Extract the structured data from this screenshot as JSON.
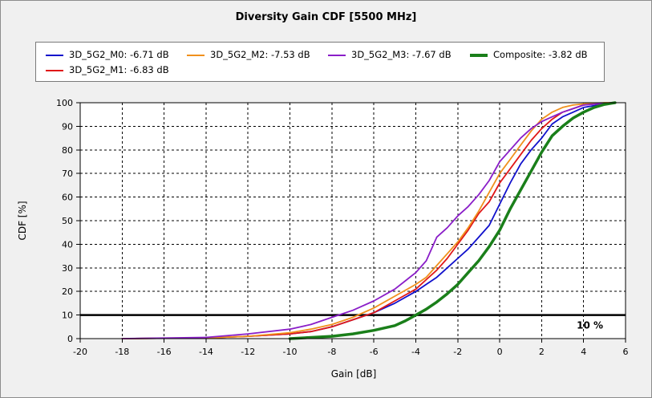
{
  "chart_data": {
    "type": "line",
    "title": "Diversity Gain CDF [5500 MHz]",
    "xlabel": "Gain [dB]",
    "ylabel": "CDF [%]",
    "xlim": [
      -20,
      6
    ],
    "ylim": [
      0,
      100
    ],
    "xticks": [
      -20,
      -18,
      -16,
      -14,
      -12,
      -10,
      -8,
      -6,
      -4,
      -2,
      0,
      2,
      4,
      6
    ],
    "yticks": [
      0,
      10,
      20,
      30,
      40,
      50,
      60,
      70,
      80,
      90,
      100
    ],
    "grid": true,
    "reference_line": {
      "y": 10,
      "label": "10 %"
    },
    "series": [
      {
        "name": "3D_5G2_M0: -6.71 dB",
        "color": "#1010cc",
        "width": 1.8,
        "x": [
          -18,
          -14,
          -12,
          -10,
          -9,
          -8,
          -7,
          -6,
          -5,
          -4,
          -3.5,
          -3,
          -2.5,
          -2,
          -1.5,
          -1,
          -0.5,
          0,
          0.5,
          1,
          1.5,
          2,
          2.5,
          3,
          3.5,
          4,
          5,
          5.5
        ],
        "y": [
          0,
          0.3,
          1,
          2,
          3,
          5,
          8,
          11,
          15,
          20,
          23,
          26,
          30,
          34,
          38,
          43,
          48,
          57,
          66,
          74,
          80,
          85,
          91,
          94,
          96,
          98,
          99.5,
          100
        ]
      },
      {
        "name": "3D_5G2_M1: -6.83 dB",
        "color": "#e01818",
        "width": 1.8,
        "x": [
          -18,
          -14,
          -12,
          -10,
          -9,
          -8,
          -7,
          -6,
          -5,
          -4,
          -3.5,
          -3,
          -2.5,
          -2,
          -1.5,
          -1,
          -0.5,
          0,
          0.5,
          1,
          1.5,
          2,
          2.5,
          3,
          3.5,
          4,
          5,
          5.5
        ],
        "y": [
          0,
          0.3,
          1,
          2,
          3,
          5,
          8,
          11,
          16,
          21,
          25,
          29,
          34,
          40,
          46,
          53,
          58,
          66,
          72,
          78,
          84,
          89,
          93,
          96,
          97.5,
          99,
          99.8,
          100
        ]
      },
      {
        "name": "3D_5G2_M2: -7.53 dB",
        "color": "#f0901c",
        "width": 1.8,
        "x": [
          -18,
          -14,
          -12,
          -10,
          -9,
          -8,
          -7,
          -6,
          -5,
          -4,
          -3.5,
          -3,
          -2.5,
          -2,
          -1.5,
          -1,
          -0.5,
          0,
          0.5,
          1,
          1.5,
          2,
          2.5,
          3,
          3.5,
          4,
          5,
          5.5
        ],
        "y": [
          0,
          0.3,
          1,
          2.5,
          4,
          6,
          9,
          13,
          18,
          23,
          26,
          31,
          36,
          41,
          47,
          54,
          62,
          70,
          76,
          82,
          88,
          93,
          96,
          98,
          99,
          99.5,
          100,
          100
        ]
      },
      {
        "name": "3D_5G2_M3: -7.67 dB",
        "color": "#8a1ec8",
        "width": 1.8,
        "x": [
          -18,
          -14,
          -12,
          -10,
          -9,
          -8,
          -7,
          -6,
          -5,
          -4,
          -3.5,
          -3,
          -2.5,
          -2,
          -1.5,
          -1,
          -0.5,
          0,
          0.5,
          1,
          1.5,
          2,
          2.5,
          3,
          3.5,
          4,
          5,
          5.5
        ],
        "y": [
          0,
          0.5,
          2,
          4,
          6,
          9,
          12,
          16,
          21,
          28,
          33,
          43,
          47,
          52,
          56,
          61,
          67,
          75,
          80,
          85,
          89,
          92,
          94,
          96,
          97.5,
          99,
          99.8,
          100
        ]
      },
      {
        "name": "Composite: -3.82 dB",
        "color": "#1a7f1a",
        "width": 3.5,
        "x": [
          -10,
          -8,
          -7,
          -6,
          -5,
          -4.5,
          -4,
          -3.5,
          -3,
          -2.5,
          -2,
          -1.5,
          -1,
          -0.5,
          0,
          0.5,
          1,
          1.5,
          2,
          2.5,
          3,
          3.5,
          4,
          4.5,
          5,
          5.5
        ],
        "y": [
          0,
          1,
          2,
          3.5,
          5.5,
          7.5,
          10,
          12.5,
          15.5,
          19,
          23,
          28,
          33,
          39,
          46,
          55,
          63,
          71,
          79,
          86,
          90,
          93.5,
          96,
          98,
          99.3,
          100
        ]
      }
    ]
  }
}
